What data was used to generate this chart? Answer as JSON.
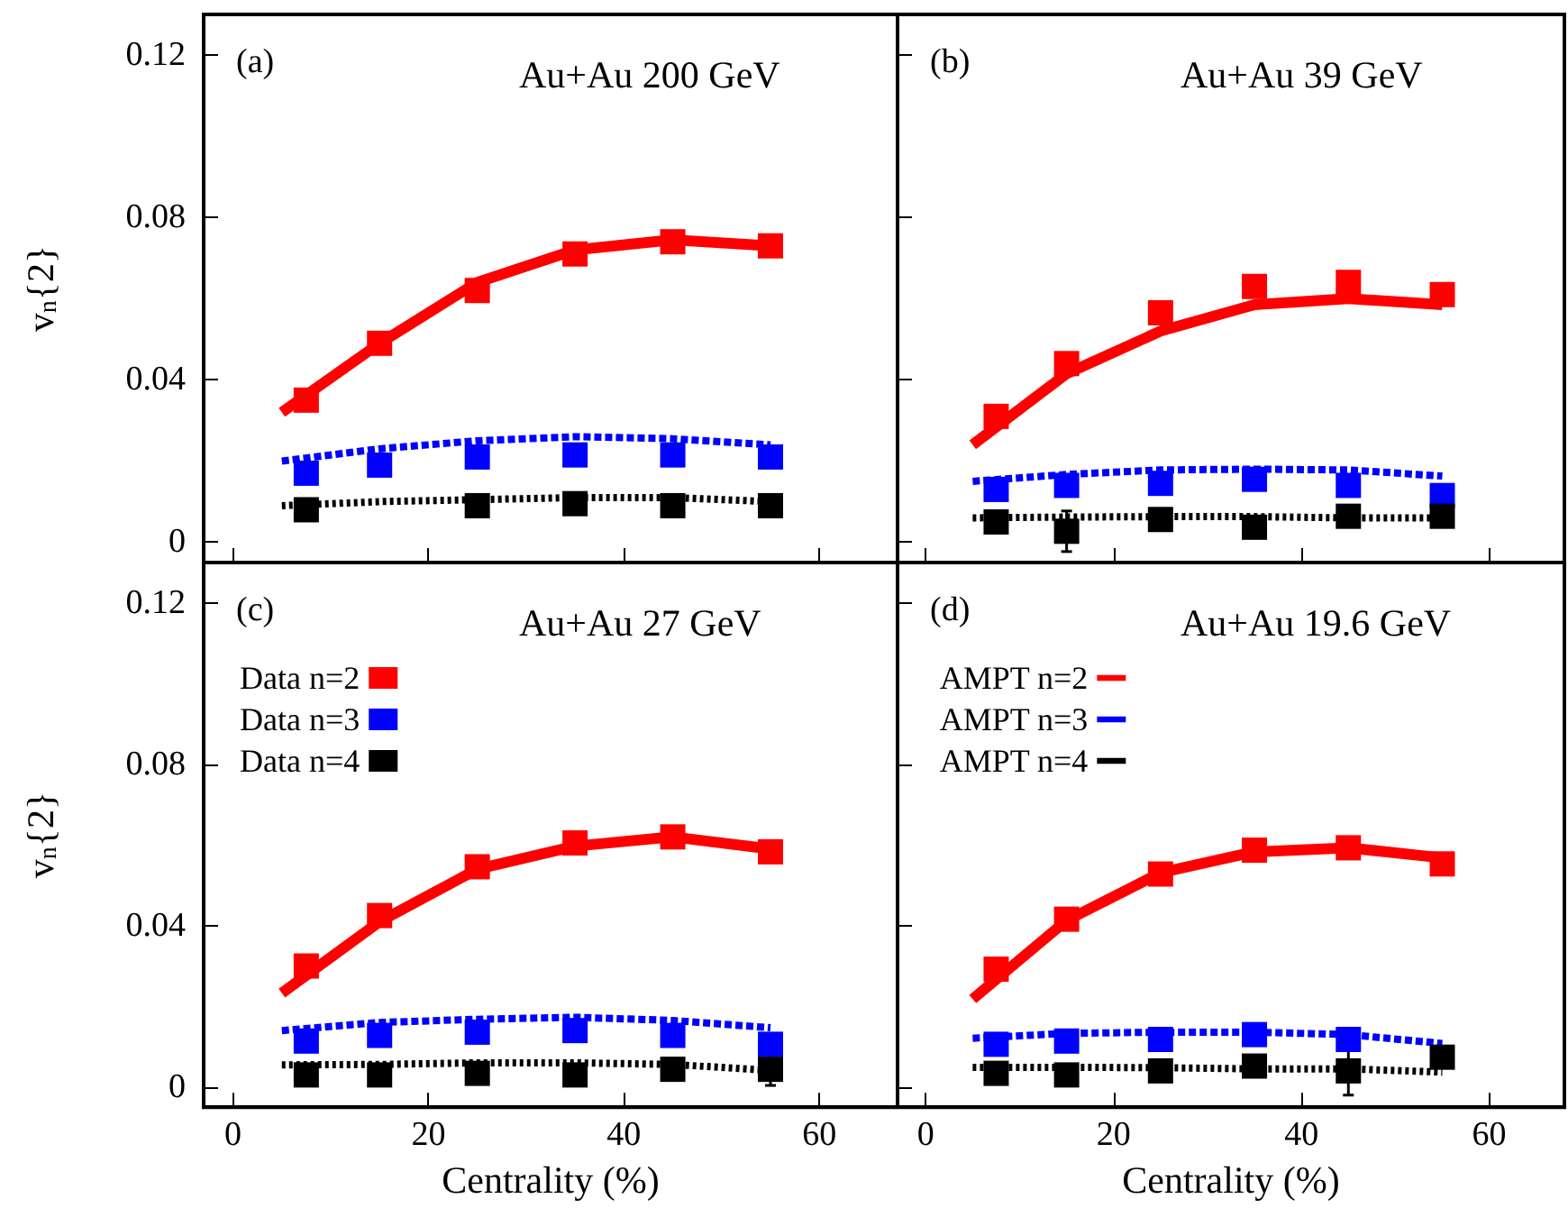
{
  "chart_data": [
    {
      "type": "scatter",
      "title": "Au+Au 200 GeV",
      "annotations": [
        "(a)"
      ],
      "ylabel": "v$_{n}${2}",
      "xlim": [
        -3,
        68
      ],
      "xticks": [
        0,
        20,
        40,
        60
      ],
      "ylim": [
        -0.005,
        0.13
      ],
      "yticks": [
        0,
        0.04,
        0.08,
        0.12
      ],
      "tick_labels": "y",
      "grid": false,
      "series": [
        {
          "type": "line",
          "color": "#ff0000",
          "marker": "none",
          "line_style": "solid",
          "x": [
            5,
            15,
            25,
            35,
            45,
            55
          ],
          "values": [
            0.032,
            0.049,
            0.064,
            0.072,
            0.0745,
            0.073
          ]
        },
        {
          "type": "line",
          "color": "#0000ff",
          "marker": "none",
          "line_style": "dashed",
          "x": [
            5,
            15,
            25,
            35,
            45,
            55
          ],
          "values": [
            0.02,
            0.023,
            0.025,
            0.026,
            0.0255,
            0.024
          ]
        },
        {
          "type": "line",
          "color": "#000000",
          "marker": "none",
          "line_style": "dotted",
          "x": [
            5,
            15,
            25,
            35,
            45,
            55
          ],
          "values": [
            0.009,
            0.01,
            0.0105,
            0.011,
            0.011,
            0.01
          ]
        },
        {
          "color": "#ff0000",
          "marker": "square",
          "x": [
            7.5,
            15,
            25,
            35,
            45,
            55
          ],
          "values": [
            0.035,
            0.049,
            0.062,
            0.071,
            0.074,
            0.073
          ]
        },
        {
          "color": "#0000ff",
          "marker": "square",
          "x": [
            7.5,
            15,
            25,
            35,
            45,
            55
          ],
          "values": [
            0.017,
            0.019,
            0.021,
            0.0215,
            0.0215,
            0.021
          ]
        },
        {
          "color": "#000000",
          "marker": "square",
          "x": [
            7.5,
            15,
            25,
            35,
            45,
            55
          ],
          "values": [
            0.008,
            null,
            0.009,
            0.0095,
            0.009,
            0.009
          ]
        }
      ]
    },
    {
      "type": "scatter",
      "title": "Au+Au 39 GeV",
      "annotations": [
        "(b)"
      ],
      "xlim": [
        -3,
        68
      ],
      "xticks": [
        0,
        20,
        40,
        60
      ],
      "ylim": [
        -0.005,
        0.13
      ],
      "yticks": [
        0,
        0.04,
        0.08,
        0.12
      ],
      "tick_labels": false,
      "grid": false,
      "series": [
        {
          "type": "line",
          "color": "#ff0000",
          "marker": "none",
          "line_style": "solid",
          "x": [
            5,
            15,
            25,
            35,
            45,
            55
          ],
          "values": [
            0.024,
            0.0415,
            0.052,
            0.0585,
            0.06,
            0.0585
          ]
        },
        {
          "type": "line",
          "color": "#0000ff",
          "marker": "none",
          "line_style": "dashed",
          "x": [
            5,
            15,
            25,
            35,
            45,
            55
          ],
          "values": [
            0.015,
            0.0167,
            0.0178,
            0.018,
            0.0178,
            0.0163
          ]
        },
        {
          "type": "line",
          "color": "#000000",
          "marker": "none",
          "line_style": "dotted",
          "x": [
            5,
            15,
            25,
            35,
            45,
            55
          ],
          "values": [
            0.006,
            0.0062,
            0.0063,
            0.0063,
            0.006,
            0.006
          ]
        },
        {
          "color": "#ff0000",
          "marker": "square",
          "x": [
            7.5,
            15,
            25,
            35,
            45,
            55
          ],
          "values": [
            0.031,
            0.044,
            0.0565,
            0.063,
            0.064,
            0.061
          ]
        },
        {
          "color": "#0000ff",
          "marker": "square",
          "x": [
            7.5,
            15,
            25,
            35,
            45,
            55
          ],
          "values": [
            0.013,
            0.014,
            0.0145,
            0.0155,
            0.014,
            0.0115
          ]
        },
        {
          "color": "#000000",
          "marker": "square",
          "x": [
            7.5,
            15,
            25,
            35,
            45,
            55
          ],
          "values": [
            0.005,
            0.0027,
            0.0056,
            0.0037,
            0.0064,
            0.0064
          ],
          "errors": [
            null,
            0.005,
            null,
            null,
            null,
            null
          ]
        }
      ]
    },
    {
      "type": "scatter",
      "title": "Au+Au 27 GeV",
      "annotations": [
        "(c)"
      ],
      "ylabel": "v$_{n}${2}",
      "xlabel": "Centrality (%)",
      "xlim": [
        -3,
        68
      ],
      "xticks": [
        0,
        20,
        40,
        60
      ],
      "ylim": [
        -0.005,
        0.13
      ],
      "yticks": [
        0,
        0.04,
        0.08,
        0.12
      ],
      "grid": false,
      "legend": "top left",
      "series": [
        {
          "type": "line",
          "color": "#ff0000",
          "marker": "none",
          "line_style": "solid",
          "x": [
            5,
            15,
            25,
            35,
            45,
            55
          ],
          "values": [
            0.0233,
            0.041,
            0.054,
            0.0597,
            0.062,
            0.059
          ]
        },
        {
          "type": "line",
          "color": "#0000ff",
          "marker": "none",
          "line_style": "dashed",
          "x": [
            5,
            15,
            25,
            35,
            45,
            55
          ],
          "values": [
            0.014,
            0.016,
            0.0168,
            0.0173,
            0.0165,
            0.0147
          ]
        },
        {
          "type": "line",
          "color": "#000000",
          "marker": "none",
          "line_style": "dotted",
          "x": [
            5,
            15,
            25,
            35,
            45,
            55
          ],
          "values": [
            0.0055,
            0.0056,
            0.006,
            0.006,
            0.0056,
            0.0041
          ]
        },
        {
          "name": "Data n=2",
          "color": "#ff0000",
          "marker": "square",
          "x": [
            7.5,
            15,
            25,
            35,
            45,
            55
          ],
          "values": [
            0.03,
            0.0425,
            0.0546,
            0.0605,
            0.062,
            0.0583
          ]
        },
        {
          "name": "Data n=3",
          "color": "#0000ff",
          "marker": "square",
          "x": [
            7.5,
            15,
            25,
            35,
            45,
            55
          ],
          "values": [
            0.0114,
            0.0128,
            0.0136,
            0.014,
            0.0128,
            0.0106
          ]
        },
        {
          "name": "Data n=4",
          "color": "#000000",
          "marker": "square",
          "x": [
            7.5,
            15,
            25,
            35,
            45,
            55
          ],
          "values": [
            0.003,
            0.003,
            0.0034,
            0.003,
            0.0044,
            0.0044
          ],
          "errors": [
            null,
            null,
            null,
            null,
            null,
            0.004
          ]
        }
      ]
    },
    {
      "type": "scatter",
      "title": "Au+Au 19.6 GeV",
      "annotations": [
        "(d)"
      ],
      "xlabel": "Centrality (%)",
      "xlim": [
        -3,
        68
      ],
      "xticks": [
        0,
        20,
        40,
        60
      ],
      "ylim": [
        -0.005,
        0.13
      ],
      "yticks": [
        0,
        0.04,
        0.08,
        0.12
      ],
      "tick_labels": "x",
      "grid": false,
      "legend": "top left",
      "series": [
        {
          "name": "AMPT n=2",
          "type": "line",
          "color": "#ff0000",
          "marker": "none",
          "line_style": "solid",
          "x": [
            5,
            15,
            25,
            35,
            45,
            55
          ],
          "values": [
            0.0218,
            0.0413,
            0.0531,
            0.0583,
            0.0593,
            0.0568
          ]
        },
        {
          "name": "AMPT n=3",
          "type": "line",
          "color": "#0000ff",
          "marker": "none",
          "line_style": "dashed",
          "x": [
            5,
            15,
            25,
            35,
            45,
            55
          ],
          "values": [
            0.0121,
            0.0133,
            0.0136,
            0.0136,
            0.013,
            0.0108
          ]
        },
        {
          "name": "AMPT n=4",
          "type": "line",
          "color": "#000000",
          "marker": "none",
          "line_style": "dotted",
          "x": [
            5,
            15,
            25,
            35,
            45,
            55
          ],
          "values": [
            0.0049,
            0.0049,
            0.0048,
            0.0045,
            0.0045,
            0.0037
          ]
        },
        {
          "color": "#ff0000",
          "marker": "square",
          "x": [
            7.5,
            15,
            25,
            35,
            45,
            55
          ],
          "values": [
            0.0292,
            0.0416,
            0.0528,
            0.0587,
            0.0593,
            0.0553
          ]
        },
        {
          "color": "#0000ff",
          "marker": "square",
          "x": [
            7.5,
            15,
            25,
            35,
            45
          ],
          "values": [
            0.0106,
            0.0114,
            0.0118,
            0.013,
            0.0118
          ]
        },
        {
          "color": "#000000",
          "marker": "square",
          "x": [
            7.5,
            15,
            25,
            35,
            45,
            55
          ],
          "values": [
            0.0034,
            0.003,
            0.004,
            0.0052,
            0.004,
            0.0074
          ],
          "errors": [
            null,
            null,
            null,
            null,
            0.006,
            null
          ]
        }
      ]
    }
  ]
}
